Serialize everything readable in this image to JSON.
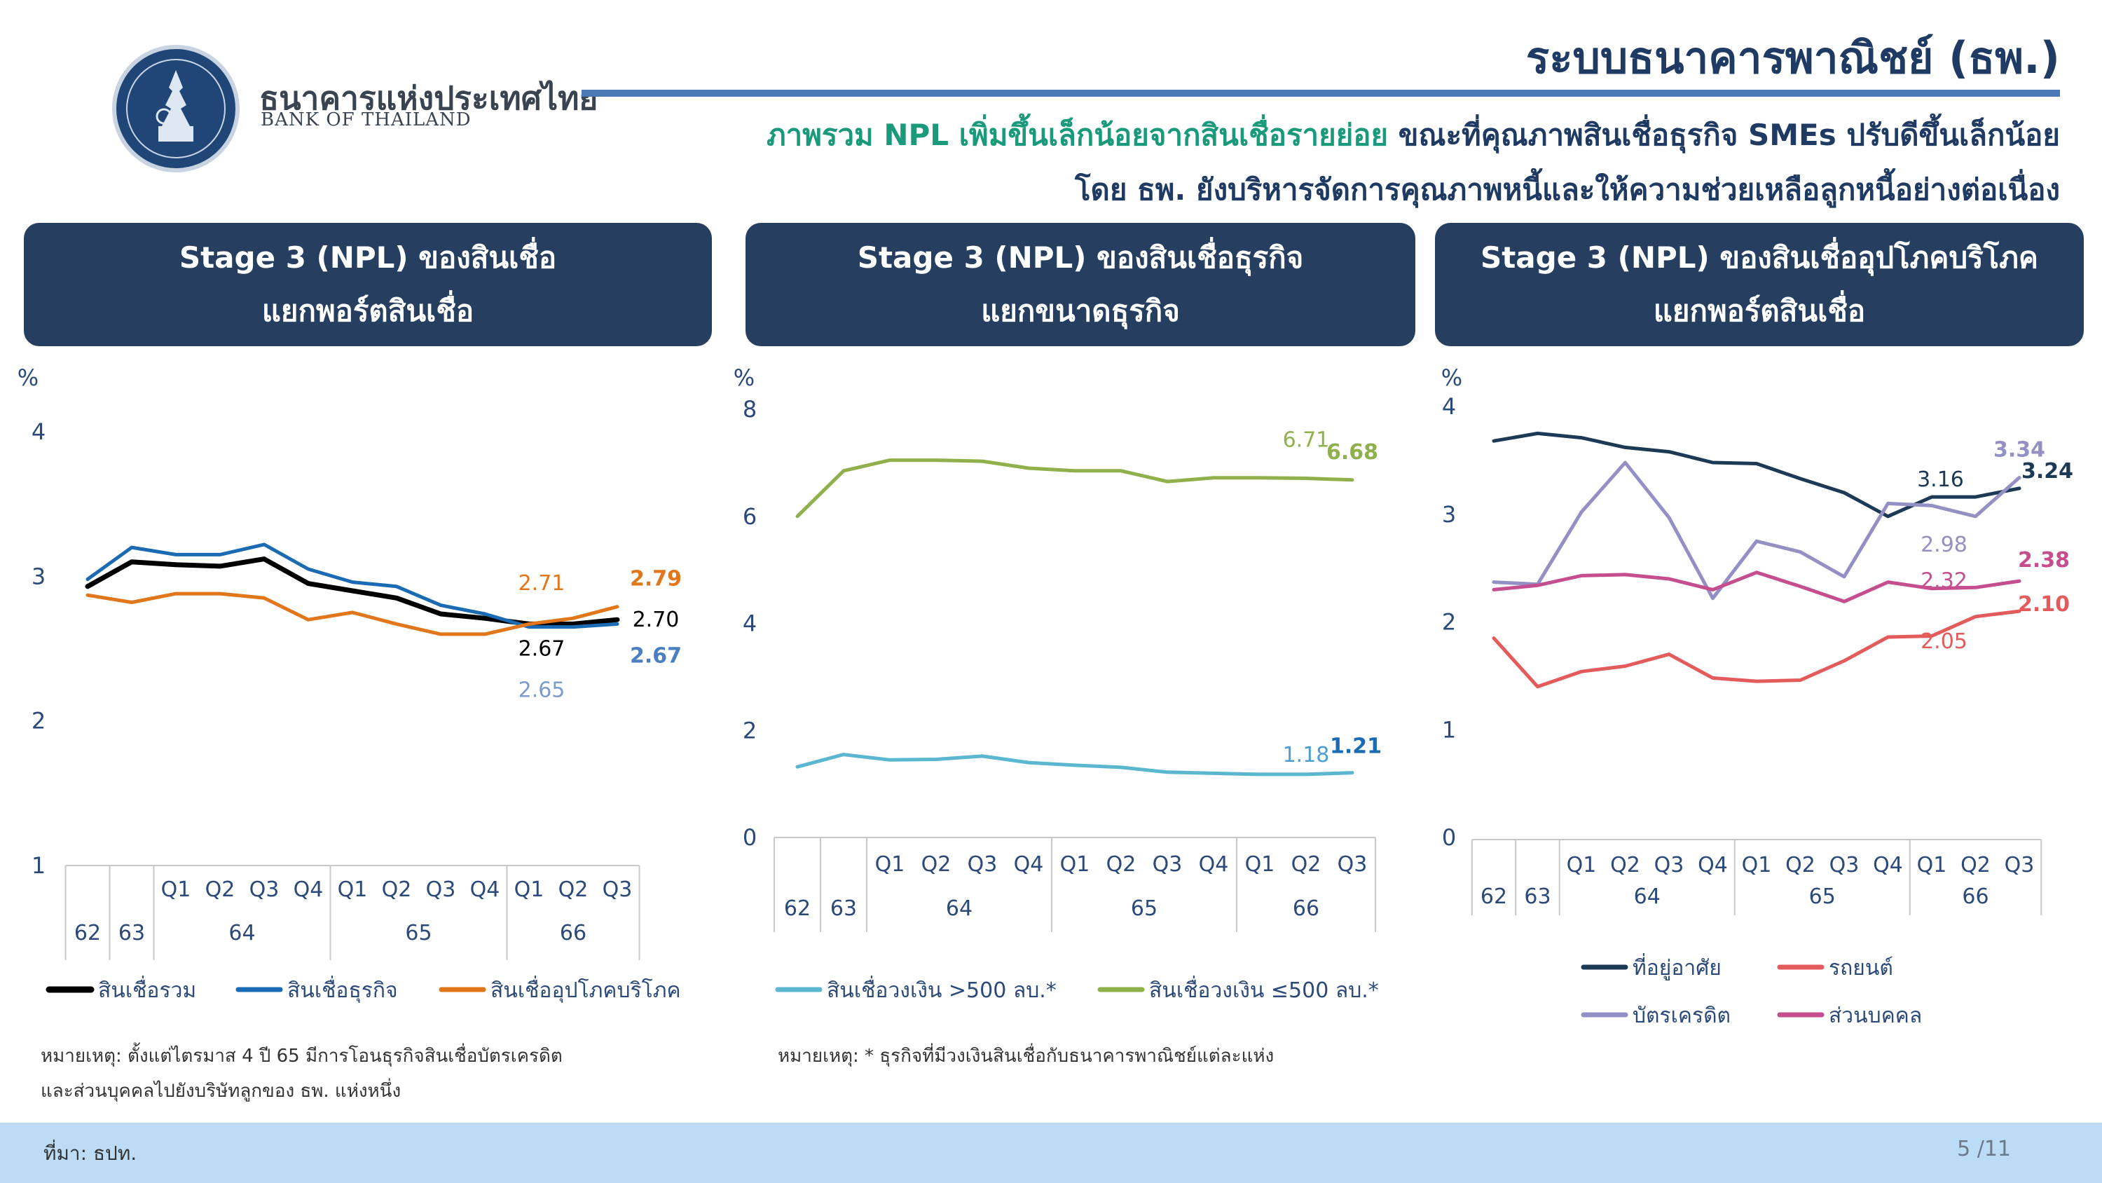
{
  "header": {
    "title": "ระบบธนาคารพาณิชย์ (ธพ.)",
    "org_name_th": "ธนาคารแห่งประเทศไทย",
    "org_name_en": "BANK OF THAILAND",
    "subtitle_highlight": "ภาพรวม NPL เพิ่มขึ้นเล็กน้อยจากสินเชื่อรายย่อย",
    "subtitle_rest": " ขณะที่คุณภาพสินเชื่อธุรกิจ SMEs ปรับดีขึ้นเล็กน้อย",
    "subtitle_line2": "โดย ธพ. ยังบริหารจัดการคุณภาพหนี้และให้ความช่วยเหลือลูกหนี้อย่างต่อเนื่อง"
  },
  "colors": {
    "navy": "#1f3b63",
    "panel": "#263f60",
    "accent_rule": "#4a79b5",
    "highlight": "#1a9a7a",
    "footer": "#bcdcf6"
  },
  "panels": [
    {
      "line1": "Stage 3 (NPL) ของสินเชื่อ",
      "line2": "แยกพอร์ตสินเชื่อ"
    },
    {
      "line1": "Stage 3 (NPL) ของสินเชื่อธุรกิจ",
      "line2": "แยกขนาดธุรกิจ"
    },
    {
      "line1": "Stage 3 (NPL) ของสินเชื่ออุปโภคบริโภค",
      "line2": "แยกพอร์ตสินเชื่อ"
    }
  ],
  "chart_data": [
    {
      "type": "line",
      "ylabel": "%",
      "ylim": [
        1,
        4
      ],
      "yticks": [
        1,
        2,
        3,
        4
      ],
      "x": [
        "62",
        "63",
        "Q1 64",
        "Q2 64",
        "Q3 64",
        "Q4 64",
        "Q1 65",
        "Q2 65",
        "Q3 65",
        "Q4 65",
        "Q1 66",
        "Q2 66",
        "Q3 66"
      ],
      "x_axis": {
        "years": [
          {
            "label": "62",
            "span": 1
          },
          {
            "label": "63",
            "span": 1
          },
          {
            "label": "64",
            "span": 4
          },
          {
            "label": "65",
            "span": 4
          },
          {
            "label": "66",
            "span": 3
          }
        ],
        "quarters": [
          "",
          "",
          "Q1",
          "Q2",
          "Q3",
          "Q4",
          "Q1",
          "Q2",
          "Q3",
          "Q4",
          "Q1",
          "Q2",
          "Q3"
        ]
      },
      "legend_position": "bottom",
      "series": [
        {
          "name": "สินเชื่อรวม",
          "color": "#000000",
          "width": 7,
          "values": [
            2.93,
            3.1,
            3.08,
            3.07,
            3.12,
            2.95,
            2.9,
            2.85,
            2.74,
            2.71,
            2.67,
            2.67,
            2.7
          ]
        },
        {
          "name": "สินเชื่อธุรกิจ",
          "color": "#1a6bb3",
          "width": 5,
          "values": [
            2.98,
            3.2,
            3.15,
            3.15,
            3.22,
            3.05,
            2.96,
            2.93,
            2.8,
            2.74,
            2.65,
            2.65,
            2.67
          ]
        },
        {
          "name": "สินเชื่ออุปโภคบริโภค",
          "color": "#e2761b",
          "width": 5,
          "values": [
            2.87,
            2.82,
            2.88,
            2.88,
            2.85,
            2.7,
            2.75,
            2.67,
            2.6,
            2.6,
            2.67,
            2.71,
            2.79
          ]
        }
      ],
      "annotations": [
        {
          "text": "2.71",
          "x": 11,
          "y": 2.71,
          "color": "#e2761b",
          "bold": false,
          "dx": -45,
          "dy": -40
        },
        {
          "text": "2.79",
          "x": 12,
          "y": 2.79,
          "color": "#e2761b",
          "bold": true,
          "dx": 55,
          "dy": -30
        },
        {
          "text": "2.70",
          "x": 12,
          "y": 2.7,
          "color": "#000000",
          "bold": false,
          "dx": 55,
          "dy": 10
        },
        {
          "text": "2.67",
          "x": 11,
          "y": 2.67,
          "color": "#000000",
          "bold": false,
          "dx": -45,
          "dy": 45
        },
        {
          "text": "2.67",
          "x": 12,
          "y": 2.67,
          "color": "#4a7fc1",
          "bold": true,
          "dx": 55,
          "dy": 55
        },
        {
          "text": "2.65",
          "x": 11,
          "y": 2.65,
          "color": "#7d9cc9",
          "bold": false,
          "dx": -45,
          "dy": 100
        }
      ]
    },
    {
      "type": "line",
      "ylabel": "%",
      "ylim": [
        0,
        8
      ],
      "yticks": [
        0,
        2,
        4,
        6,
        8
      ],
      "x": [
        "62",
        "63",
        "Q1 64",
        "Q2 64",
        "Q3 64",
        "Q4 64",
        "Q1 65",
        "Q2 65",
        "Q3 65",
        "Q4 65",
        "Q1 66",
        "Q2 66",
        "Q3 66"
      ],
      "x_axis": {
        "years": [
          {
            "label": "62",
            "span": 1
          },
          {
            "label": "63",
            "span": 1
          },
          {
            "label": "64",
            "span": 4
          },
          {
            "label": "65",
            "span": 4
          },
          {
            "label": "66",
            "span": 3
          }
        ],
        "quarters": [
          "",
          "",
          "Q1",
          "Q2",
          "Q3",
          "Q4",
          "Q1",
          "Q2",
          "Q3",
          "Q4",
          "Q1",
          "Q2",
          "Q3"
        ]
      },
      "legend_position": "bottom",
      "series": [
        {
          "name": "สินเชื่อวงเงิน >500 ลบ.*",
          "color": "#5bb6d0",
          "width": 5,
          "values": [
            1.32,
            1.55,
            1.45,
            1.46,
            1.52,
            1.4,
            1.35,
            1.31,
            1.22,
            1.2,
            1.18,
            1.18,
            1.21
          ]
        },
        {
          "name": "สินเชื่อวงเงิน ≤500 ลบ.*",
          "color": "#8fb04a",
          "width": 5,
          "values": [
            6.0,
            6.85,
            7.05,
            7.05,
            7.03,
            6.9,
            6.85,
            6.85,
            6.65,
            6.72,
            6.72,
            6.71,
            6.68
          ]
        }
      ],
      "annotations": [
        {
          "text": "6.71",
          "x": 11,
          "y": 6.71,
          "color": "#8fb04a",
          "bold": false,
          "dx": 0,
          "dy": -45
        },
        {
          "text": "6.68",
          "x": 12,
          "y": 6.68,
          "color": "#8fb04a",
          "bold": true,
          "dx": 0,
          "dy": -30
        },
        {
          "text": "1.18",
          "x": 11,
          "y": 1.18,
          "color": "#4a9ed4",
          "bold": false,
          "dx": 0,
          "dy": -18
        },
        {
          "text": "1.21",
          "x": 12,
          "y": 1.21,
          "color": "#1a6bb3",
          "bold": true,
          "dx": 5,
          "dy": -28
        }
      ]
    },
    {
      "type": "line",
      "ylabel": "%",
      "ylim": [
        0,
        4
      ],
      "yticks": [
        0,
        1,
        2,
        3,
        4
      ],
      "x": [
        "62",
        "63",
        "Q1 64",
        "Q2 64",
        "Q3 64",
        "Q4 64",
        "Q1 65",
        "Q2 65",
        "Q3 65",
        "Q4 65",
        "Q1 66",
        "Q2 66",
        "Q3 66"
      ],
      "x_axis": {
        "years": [
          {
            "label": "62",
            "span": 1
          },
          {
            "label": "63",
            "span": 1
          },
          {
            "label": "64",
            "span": 4
          },
          {
            "label": "65",
            "span": 4
          },
          {
            "label": "66",
            "span": 3
          }
        ],
        "quarters": [
          "",
          "",
          "Q1",
          "Q2",
          "Q3",
          "Q4",
          "Q1",
          "Q2",
          "Q3",
          "Q4",
          "Q1",
          "Q2",
          "Q3"
        ]
      },
      "legend_position": "bottom",
      "series": [
        {
          "name": "ที่อยู่อาศัย",
          "color": "#1c3a56",
          "width": 5,
          "values": [
            3.68,
            3.75,
            3.71,
            3.62,
            3.58,
            3.48,
            3.47,
            3.33,
            3.2,
            2.98,
            3.16,
            3.16,
            3.24
          ]
        },
        {
          "name": "รถยนต์",
          "color": "#e35b5b",
          "width": 5,
          "values": [
            1.85,
            1.4,
            1.54,
            1.59,
            1.7,
            1.48,
            1.45,
            1.46,
            1.64,
            1.86,
            1.87,
            2.05,
            2.1
          ]
        },
        {
          "name": "บัตรเครดิต",
          "color": "#9590c4",
          "width": 5,
          "values": [
            2.37,
            2.35,
            3.02,
            3.48,
            2.97,
            2.22,
            2.75,
            2.65,
            2.42,
            3.1,
            3.08,
            2.98,
            3.34
          ]
        },
        {
          "name": "ส่วนบุคคล",
          "color": "#c44e8e",
          "width": 5,
          "values": [
            2.3,
            2.34,
            2.43,
            2.44,
            2.4,
            2.3,
            2.46,
            2.33,
            2.19,
            2.37,
            2.31,
            2.32,
            2.38
          ]
        }
      ],
      "annotations": [
        {
          "text": "3.34",
          "x": 12,
          "y": 3.34,
          "color": "#9590c4",
          "bold": true,
          "dx": 0,
          "dy": -30
        },
        {
          "text": "3.16",
          "x": 11,
          "y": 3.16,
          "color": "#1c3a56",
          "bold": false,
          "dx": -50,
          "dy": -15
        },
        {
          "text": "3.24",
          "x": 12,
          "y": 3.24,
          "color": "#1c3a56",
          "bold": true,
          "dx": 40,
          "dy": -15
        },
        {
          "text": "2.98",
          "x": 11,
          "y": 2.98,
          "color": "#9590c4",
          "bold": false,
          "dx": -45,
          "dy": 50
        },
        {
          "text": "2.38",
          "x": 12,
          "y": 2.38,
          "color": "#c44e8e",
          "bold": true,
          "dx": 35,
          "dy": -20
        },
        {
          "text": "2.32",
          "x": 11,
          "y": 2.32,
          "color": "#c44e8e",
          "bold": false,
          "dx": -45,
          "dy": 0
        },
        {
          "text": "2.10",
          "x": 12,
          "y": 2.1,
          "color": "#e35b5b",
          "bold": true,
          "dx": 35,
          "dy": 0
        },
        {
          "text": "2.05",
          "x": 11,
          "y": 2.05,
          "color": "#e35b5b",
          "bold": false,
          "dx": -45,
          "dy": 45
        }
      ]
    }
  ],
  "notes": {
    "left_line1": "หมายเหตุ: ตั้งแต่ไตรมาส 4 ปี 65 มีการโอนธุรกิจสินเชื่อบัตรเครดิต",
    "left_line2": "และส่วนบุคคลไปยังบริษัทลูกของ ธพ. แห่งหนึ่ง",
    "middle": "หมายเหตุ: * ธุรกิจที่มีวงเงินสินเชื่อกับธนาคารพาณิชย์แต่ละแห่ง"
  },
  "footer": {
    "source": "ที่มา: ธปท.",
    "page": "5 /11"
  }
}
